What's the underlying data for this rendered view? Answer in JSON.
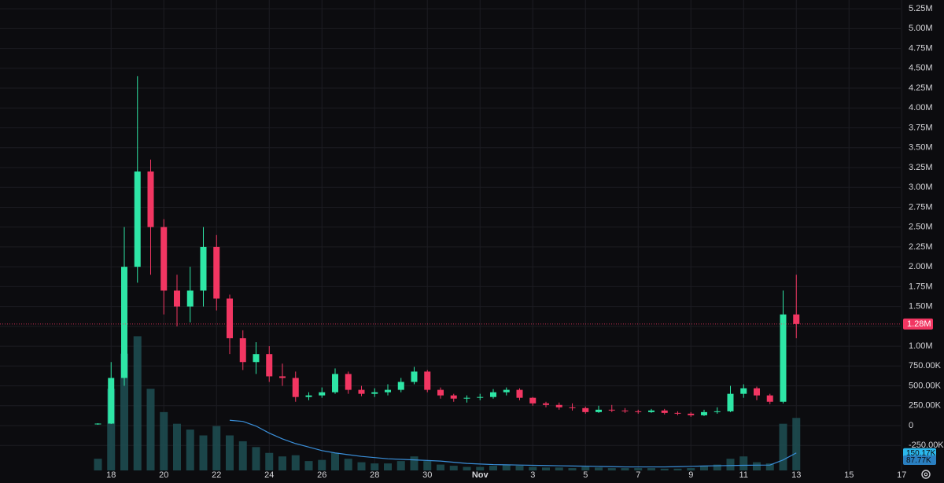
{
  "chart_data": {
    "type": "candlestick",
    "categories": [
      null,
      "18",
      null,
      null,
      null,
      "20",
      null,
      null,
      null,
      "22",
      null,
      null,
      null,
      "24",
      null,
      null,
      null,
      "26",
      null,
      null,
      null,
      "28",
      null,
      null,
      null,
      "30",
      null,
      null,
      null,
      "Nov",
      null,
      null,
      null,
      "3",
      null,
      null,
      null,
      "5",
      null,
      null,
      null,
      "7",
      null,
      null,
      null,
      "9",
      null,
      null,
      null,
      "11",
      null,
      null,
      null,
      "13",
      null,
      null,
      null,
      "15",
      null,
      null,
      null,
      "17"
    ],
    "open": [
      20000,
      25000,
      600000,
      2000000,
      3200000,
      2500000,
      1700000,
      1500000,
      1700000,
      2250000,
      1600000,
      1100000,
      800000,
      900000,
      620000,
      600000,
      360000,
      380000,
      420000,
      650000,
      450000,
      400000,
      420000,
      450000,
      550000,
      680000,
      450000,
      380000,
      340000,
      350000,
      360000,
      420000,
      450000,
      350000,
      280000,
      260000,
      230000,
      220000,
      170000,
      200000,
      190000,
      180000,
      170000,
      190000,
      160000,
      150000,
      130000,
      170000,
      180000,
      400000,
      470000,
      380000,
      300000,
      1400000,
      null,
      null,
      null,
      null,
      null,
      null,
      null,
      null
    ],
    "high": [
      30000,
      800000,
      2500000,
      4400000,
      3350000,
      2600000,
      1900000,
      2000000,
      2500000,
      2400000,
      1650000,
      1200000,
      1050000,
      1000000,
      780000,
      680000,
      420000,
      480000,
      720000,
      680000,
      500000,
      470000,
      520000,
      600000,
      740000,
      700000,
      480000,
      400000,
      380000,
      400000,
      460000,
      480000,
      470000,
      360000,
      300000,
      290000,
      280000,
      240000,
      250000,
      260000,
      220000,
      200000,
      210000,
      210000,
      180000,
      170000,
      200000,
      230000,
      500000,
      520000,
      490000,
      400000,
      1700000,
      1900000,
      null,
      null,
      null,
      null,
      null,
      null,
      null,
      null
    ],
    "low": [
      10000,
      20000,
      500000,
      1800000,
      1900000,
      1400000,
      1250000,
      1300000,
      1500000,
      1450000,
      900000,
      700000,
      650000,
      550000,
      500000,
      300000,
      320000,
      350000,
      400000,
      400000,
      370000,
      360000,
      380000,
      420000,
      520000,
      420000,
      340000,
      300000,
      290000,
      320000,
      340000,
      380000,
      320000,
      250000,
      230000,
      200000,
      190000,
      150000,
      160000,
      170000,
      160000,
      150000,
      160000,
      140000,
      130000,
      110000,
      120000,
      150000,
      170000,
      350000,
      320000,
      270000,
      280000,
      1100000,
      null,
      null,
      null,
      null,
      null,
      null,
      null,
      null
    ],
    "close": [
      25000,
      600000,
      2000000,
      3200000,
      2500000,
      1700000,
      1500000,
      1700000,
      2250000,
      1600000,
      1100000,
      800000,
      900000,
      620000,
      600000,
      360000,
      380000,
      420000,
      650000,
      450000,
      400000,
      420000,
      450000,
      550000,
      680000,
      450000,
      380000,
      340000,
      350000,
      360000,
      420000,
      450000,
      350000,
      280000,
      260000,
      230000,
      220000,
      170000,
      200000,
      190000,
      180000,
      170000,
      190000,
      160000,
      150000,
      130000,
      170000,
      180000,
      400000,
      470000,
      380000,
      300000,
      1400000,
      1280000,
      null,
      null,
      null,
      null,
      null,
      null,
      null,
      null
    ],
    "volume": [
      100000,
      700000,
      1000000,
      1150000,
      700000,
      500000,
      400000,
      350000,
      300000,
      380000,
      300000,
      250000,
      200000,
      150000,
      120000,
      130000,
      80000,
      90000,
      150000,
      100000,
      70000,
      60000,
      60000,
      80000,
      120000,
      80000,
      50000,
      40000,
      30000,
      30000,
      40000,
      50000,
      40000,
      30000,
      25000,
      25000,
      20000,
      30000,
      25000,
      20000,
      20000,
      20000,
      20000,
      15000,
      15000,
      20000,
      40000,
      50000,
      100000,
      120000,
      70000,
      60000,
      400000,
      450000,
      null,
      null,
      null,
      null,
      null,
      null,
      null,
      null
    ],
    "volume_ma": [
      null,
      null,
      null,
      null,
      null,
      null,
      null,
      null,
      null,
      null,
      430000,
      420000,
      380000,
      320000,
      270000,
      230000,
      200000,
      170000,
      150000,
      135000,
      120000,
      110000,
      100000,
      95000,
      90000,
      85000,
      80000,
      70000,
      60000,
      55000,
      50000,
      48000,
      46000,
      44000,
      42000,
      40000,
      38000,
      36000,
      34000,
      32000,
      30000,
      30000,
      30000,
      30000,
      32000,
      35000,
      38000,
      40000,
      42000,
      44000,
      45000,
      46000,
      90000,
      150170,
      null,
      null,
      null,
      null,
      null,
      null,
      null,
      null
    ],
    "up_color": "#2ee6a6",
    "down_color": "#f23662",
    "volume_color": "#1d4b50",
    "volume_ma_color": "#3a8fd9",
    "ylim": [
      -564600,
      5360000
    ],
    "volume_lim": [
      0,
      1200000
    ],
    "yticks": [
      {
        "value": -250000,
        "label": "-250.00K"
      },
      0,
      {
        "value": 250000,
        "label": "250.00K"
      },
      {
        "value": 500000,
        "label": "500.00K"
      },
      {
        "value": 750000,
        "label": "750.00K"
      },
      {
        "value": 1000000,
        "label": "1.00M"
      },
      {
        "value": 1250000,
        "label": "1.25M"
      },
      {
        "value": 1500000,
        "label": "1.50M"
      },
      {
        "value": 1750000,
        "label": "1.75M"
      },
      {
        "value": 2000000,
        "label": "2.00M"
      },
      {
        "value": 2250000,
        "label": "2.25M"
      },
      {
        "value": 2500000,
        "label": "2.50M"
      },
      {
        "value": 2750000,
        "label": "2.75M"
      },
      {
        "value": 3000000,
        "label": "3.00M"
      },
      {
        "value": 3250000,
        "label": "3.25M"
      },
      {
        "value": 3500000,
        "label": "3.50M"
      },
      {
        "value": 3750000,
        "label": "3.75M"
      },
      {
        "value": 4000000,
        "label": "4.00M"
      },
      {
        "value": 4250000,
        "label": "4.25M"
      },
      {
        "value": 4500000,
        "label": "4.50M"
      },
      {
        "value": 4750000,
        "label": "4.75M"
      },
      {
        "value": 5000000,
        "label": "5.00M"
      },
      {
        "value": 5250000,
        "label": "5.25M"
      }
    ],
    "grid": true,
    "last_price": {
      "value": 1280000,
      "label": "1.28M"
    },
    "volume_labels": [
      {
        "value": 150170,
        "label": "150.17K"
      },
      {
        "value": 87770,
        "label": "87.77K"
      }
    ]
  }
}
